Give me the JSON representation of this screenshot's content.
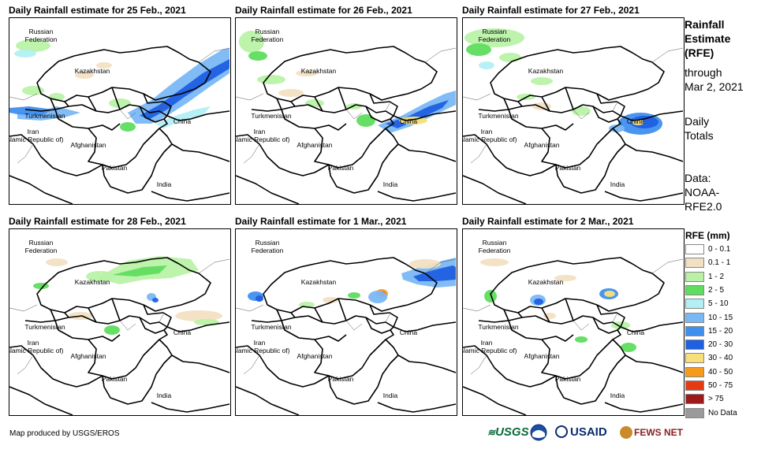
{
  "panels": [
    {
      "title": "Daily Rainfall estimate for 25 Feb., 2021",
      "rain": "p1"
    },
    {
      "title": "Daily Rainfall estimate for 26 Feb., 2021",
      "rain": "p2"
    },
    {
      "title": "Daily Rainfall estimate for 27 Feb., 2021",
      "rain": "p3"
    },
    {
      "title": "Daily Rainfall estimate for 28 Feb., 2021",
      "rain": "p4"
    },
    {
      "title": "Daily Rainfall estimate for 1 Mar., 2021",
      "rain": "p5"
    },
    {
      "title": "Daily Rainfall estimate for 2 Mar., 2021",
      "rain": "p6"
    }
  ],
  "map_labels": {
    "russia": [
      "Russian",
      "Federation"
    ],
    "kazakhstan": "Kazakhstan",
    "turkmenistan": "Turkmenistan",
    "iran": [
      "Iran",
      "(Islamic Republic of)"
    ],
    "afghanistan": "Afghanistan",
    "pakistan": "Pakistan",
    "india": "India",
    "china": "China"
  },
  "sidebar": {
    "heading": [
      "Rainfall",
      "Estimate",
      "(RFE)"
    ],
    "through": [
      "through",
      "Mar 2, 2021"
    ],
    "totals": [
      "Daily",
      "Totals"
    ],
    "data": [
      "Data:",
      "NOAA-",
      "RFE2.0"
    ]
  },
  "legend": {
    "title": "RFE (mm)",
    "items": [
      {
        "label": "0 - 0.1",
        "color": "#ffffff"
      },
      {
        "label": "0.1 - 1",
        "color": "#f2e0c3"
      },
      {
        "label": "1 - 2",
        "color": "#b9f2a6"
      },
      {
        "label": "2 - 5",
        "color": "#5fdd5f"
      },
      {
        "label": "5 - 10",
        "color": "#b3f0f5"
      },
      {
        "label": "10 - 15",
        "color": "#7ab8f5"
      },
      {
        "label": "15 - 20",
        "color": "#3f8fef"
      },
      {
        "label": "20 - 30",
        "color": "#1f5fe0"
      },
      {
        "label": "30 - 40",
        "color": "#f7e07a"
      },
      {
        "label": "40 - 50",
        "color": "#f59a1a"
      },
      {
        "label": "50 - 75",
        "color": "#e83a12"
      },
      {
        "label": "> 75",
        "color": "#9e1a1a"
      },
      {
        "label": "No Data",
        "color": "#9a9a9a"
      }
    ]
  },
  "footer": "Map produced by USGS/EROS",
  "logos": {
    "usgs": "USGS",
    "usaid": "USAID",
    "fewsnet": "FEWS NET"
  }
}
